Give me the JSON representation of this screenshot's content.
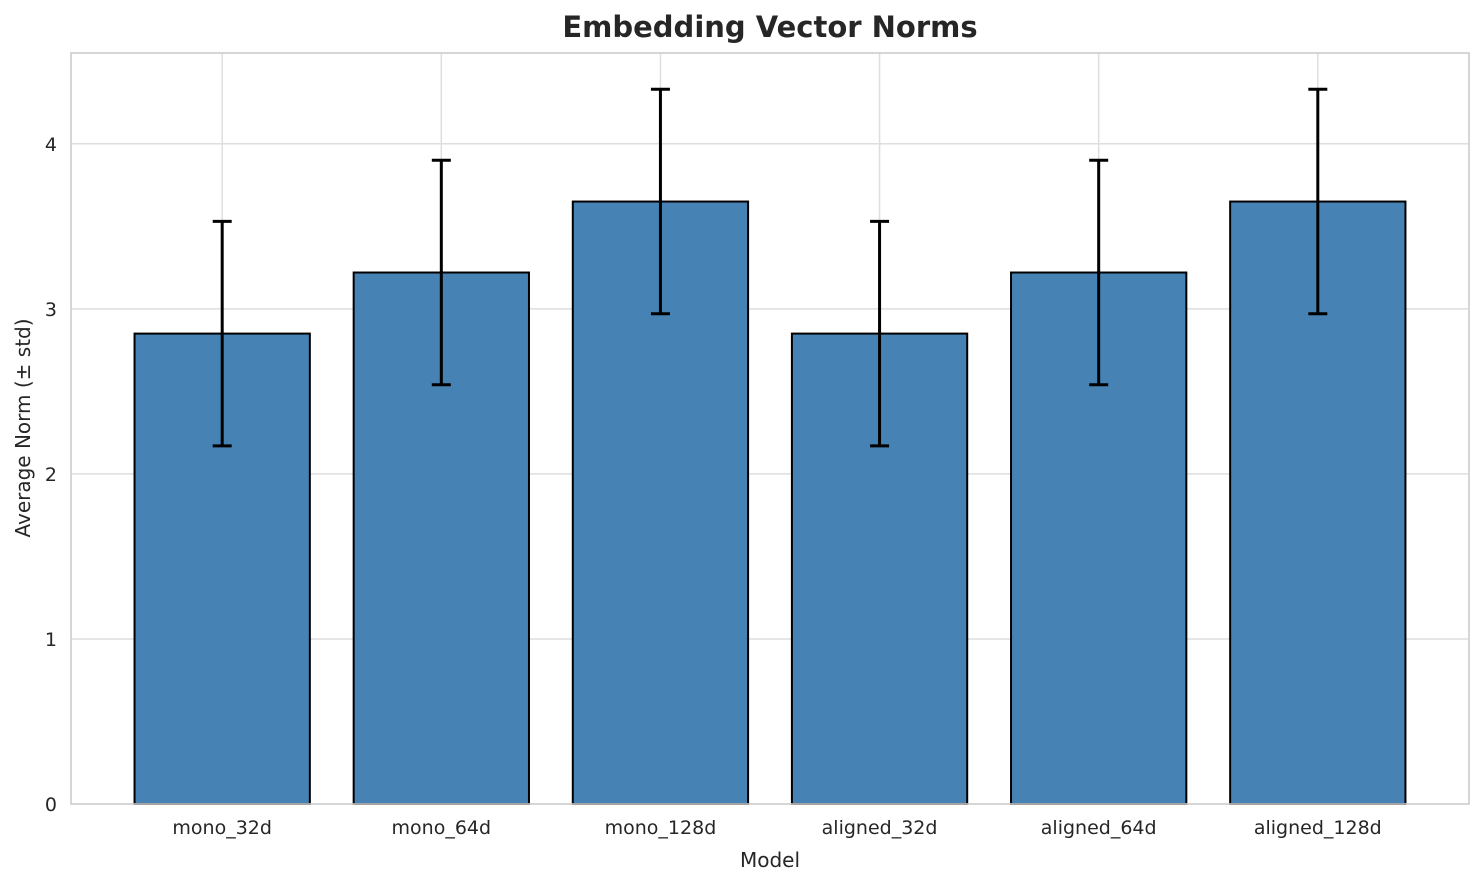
{
  "chart_data": {
    "type": "bar",
    "title": "Embedding Vector Norms",
    "xlabel": "Model",
    "ylabel": "Average Norm (± std)",
    "categories": [
      "mono_32d",
      "mono_64d",
      "mono_128d",
      "aligned_32d",
      "aligned_64d",
      "aligned_128d"
    ],
    "series": [
      {
        "name": "average_norm",
        "values": [
          2.85,
          3.22,
          3.65,
          2.85,
          3.22,
          3.65
        ],
        "errors": [
          0.68,
          0.68,
          0.68,
          0.68,
          0.68,
          0.68
        ]
      }
    ],
    "yticks": [
      0,
      1,
      2,
      3,
      4
    ],
    "ylim": [
      0,
      4.55
    ],
    "grid": "both",
    "legend": "none",
    "error_bars": true,
    "colors": {
      "bar_fill": "#4682B4",
      "bar_edge": "#000000",
      "error_bar": "#000000",
      "gridline": "#dedede",
      "spine": "#cccccc",
      "text": "#262626",
      "background": "#ffffff"
    }
  }
}
